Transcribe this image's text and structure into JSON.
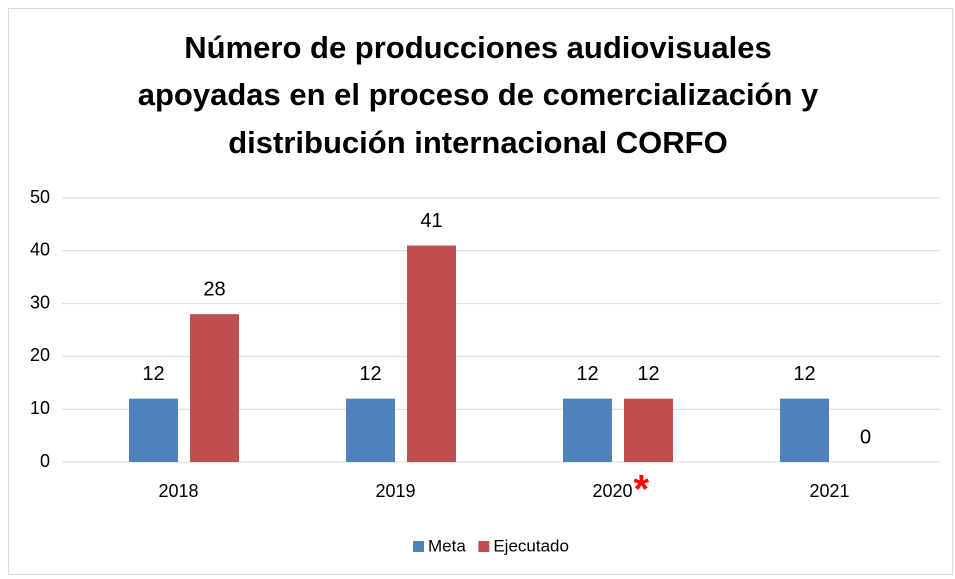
{
  "chart_data": {
    "type": "bar",
    "title": [
      "Número de producciones audiovisuales",
      "apoyadas en el proceso de comercialización y",
      "distribución internacional CORFO"
    ],
    "categories": [
      "2018",
      "2019",
      "2020",
      "2021"
    ],
    "series": [
      {
        "name": "Meta",
        "color": "#4f81bd",
        "values": [
          12,
          12,
          12,
          12
        ]
      },
      {
        "name": "Ejecutado",
        "color": "#c0504d",
        "values": [
          28,
          41,
          12,
          0
        ]
      }
    ],
    "annotation": "*",
    "ylim": [
      0,
      50
    ],
    "yticks": [
      0,
      10,
      20,
      30,
      40,
      50
    ],
    "grid": true,
    "legend": "bottom"
  }
}
